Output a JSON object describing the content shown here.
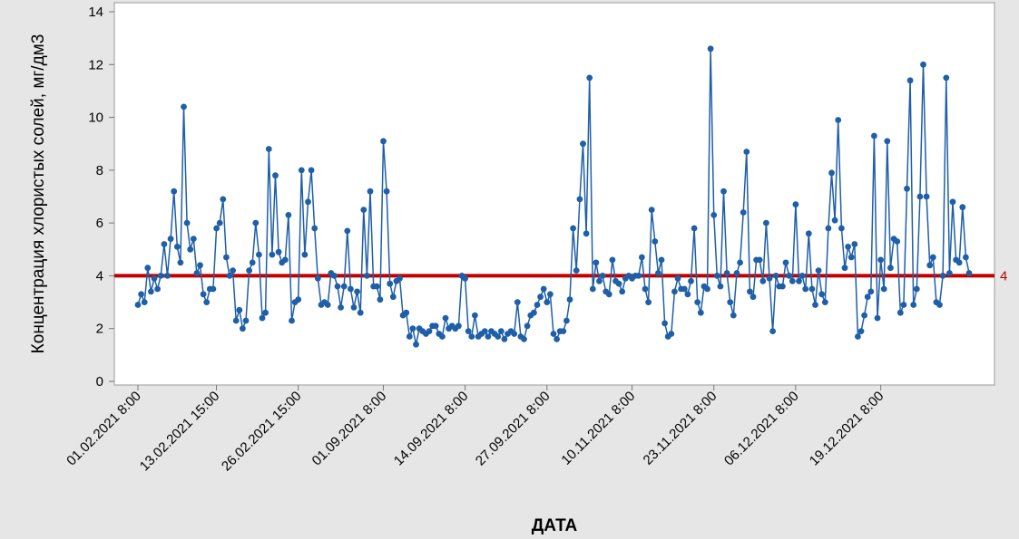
{
  "chart_data": {
    "type": "line",
    "title": "",
    "xlabel": "ДАТА",
    "ylabel": "Концентрация хлористых солей, мг/дм3",
    "ylim": [
      0,
      14
    ],
    "yticks": [
      0,
      2,
      4,
      6,
      8,
      10,
      12,
      14
    ],
    "grid": false,
    "x_tick_labels": [
      "01.02.2021 8:00",
      "13.02.2021 15:00",
      "26.02.2021 15:00",
      "01.09.2021 8:00",
      "14.09.2021 8:00",
      "27.09.2021 8:00",
      "10.11.2021 8:00",
      "23.11.2021 8:00",
      "06.12.2021 8:00",
      "19.12.2021 8:00"
    ],
    "x_tick_index": [
      0,
      24,
      49,
      75,
      100,
      125,
      151,
      176,
      201,
      227
    ],
    "reference_line": {
      "value": 4,
      "label": "4",
      "color": "#c00000"
    },
    "colors": {
      "series": "#1f5fa8",
      "reference": "#c00000",
      "background": "#e6e6e6",
      "plot": "#ffffff"
    },
    "series": [
      {
        "values": [
          2.9,
          3.3,
          3.0,
          4.3,
          3.4,
          3.9,
          3.5,
          4.0,
          5.2,
          4.0,
          5.4,
          7.2,
          5.1,
          4.5,
          10.4,
          6.0,
          5.0,
          5.4,
          4.1,
          4.4,
          3.3,
          3.0,
          3.5,
          3.5,
          5.8,
          6.0,
          6.9,
          4.7,
          4.0,
          4.2,
          2.3,
          2.7,
          2.0,
          2.3,
          4.2,
          4.5,
          6.0,
          4.8,
          2.4,
          2.6,
          8.8,
          4.8,
          7.8,
          4.9,
          4.5,
          4.6,
          6.3,
          2.3,
          3.0,
          3.1,
          8.0,
          4.8,
          6.8,
          8.0,
          5.8,
          3.9,
          2.9,
          3.0,
          2.9,
          4.1,
          4.0,
          3.6,
          2.8,
          3.6,
          5.7,
          3.5,
          2.8,
          3.4,
          2.6,
          6.5,
          4.0,
          7.2,
          3.6,
          3.6,
          3.1,
          9.1,
          7.2,
          3.7,
          3.2,
          3.8,
          3.9,
          2.5,
          2.6,
          1.7,
          2.0,
          1.4,
          2.0,
          1.9,
          1.8,
          1.9,
          2.1,
          2.1,
          1.8,
          1.7,
          2.4,
          2.0,
          2.1,
          2.0,
          2.1,
          4.0,
          3.9,
          1.9,
          1.7,
          2.5,
          1.7,
          1.8,
          1.9,
          1.7,
          1.9,
          1.8,
          1.7,
          1.9,
          1.6,
          1.8,
          1.9,
          1.8,
          3.0,
          1.7,
          1.6,
          2.1,
          2.5,
          2.6,
          2.9,
          3.2,
          3.5,
          3.0,
          3.3,
          1.8,
          1.6,
          1.9,
          1.9,
          2.3,
          3.1,
          5.8,
          4.2,
          6.9,
          9.0,
          5.6,
          11.5,
          3.5,
          4.5,
          3.8,
          4.0,
          3.4,
          3.3,
          4.6,
          3.8,
          3.7,
          3.4,
          3.9,
          4.0,
          3.9,
          4.0,
          4.0,
          4.7,
          3.5,
          3.0,
          6.5,
          5.3,
          4.1,
          4.6,
          2.2,
          1.7,
          1.8,
          3.4,
          3.9,
          3.5,
          3.5,
          3.3,
          3.8,
          5.8,
          3.0,
          2.6,
          3.6,
          3.5,
          12.6,
          6.3,
          4.0,
          3.6,
          7.2,
          4.1,
          3.0,
          2.5,
          4.1,
          4.5,
          6.4,
          8.7,
          3.4,
          3.2,
          4.6,
          4.6,
          3.8,
          6.0,
          3.9,
          1.9,
          4.0,
          3.6,
          3.6,
          4.5,
          4.0,
          3.8,
          6.7,
          3.8,
          4.0,
          3.5,
          5.6,
          3.5,
          2.9,
          4.2,
          3.3,
          3.0,
          5.8,
          7.9,
          6.1,
          9.9,
          5.8,
          4.3,
          5.1,
          4.7,
          5.2,
          1.7,
          1.9,
          2.5,
          3.2,
          3.4,
          9.3,
          2.4,
          4.6,
          3.5,
          9.1,
          4.3,
          5.4,
          5.3,
          2.6,
          2.9,
          7.3,
          11.4,
          2.9,
          3.5,
          7.0,
          12.0,
          7.0,
          4.4,
          4.7,
          3.0,
          2.9,
          4.0,
          11.5,
          4.1,
          6.8,
          4.6,
          4.5,
          6.6,
          4.7,
          4.1
        ]
      }
    ]
  }
}
